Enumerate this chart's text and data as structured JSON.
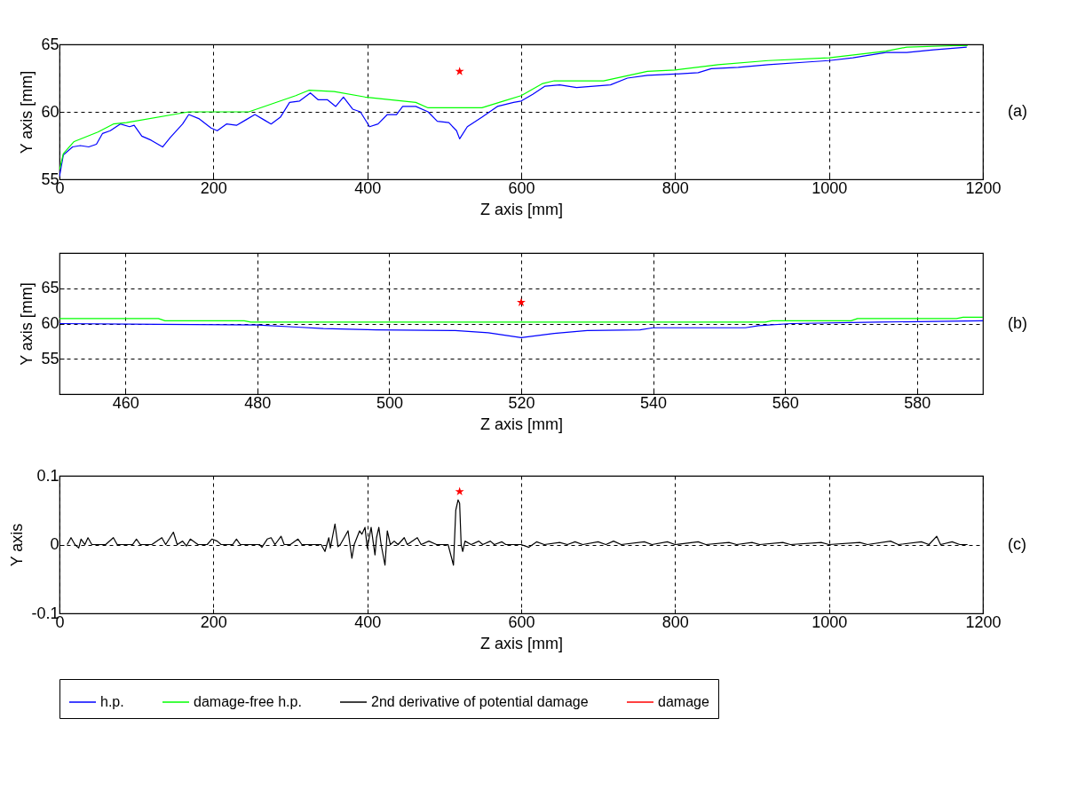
{
  "chart_data": [
    {
      "type": "line",
      "xlabel": "Z axis [mm]",
      "ylabel": "Y axis [mm]",
      "xlim": [
        0,
        1200
      ],
      "xticks": [
        0,
        200,
        400,
        600,
        800,
        1000,
        1200
      ],
      "ylim": [
        55,
        65
      ],
      "yticks": [
        55,
        60,
        65
      ],
      "grid": true,
      "legend": "bottom",
      "annotations": [
        "(a)"
      ],
      "series": [
        {
          "name": "h.p.",
          "color": "#0000ff",
          "x": [
            0,
            5,
            17,
            27,
            38,
            48,
            56,
            66,
            79,
            91,
            97,
            107,
            119,
            134,
            144,
            160,
            168,
            181,
            197,
            205,
            217,
            230,
            242,
            254,
            266,
            275,
            287,
            299,
            312,
            326,
            336,
            348,
            359,
            369,
            381,
            391,
            403,
            414,
            426,
            438,
            446,
            463,
            479,
            491,
            506,
            516,
            520,
            530,
            549,
            569,
            590,
            600,
            615,
            631,
            650,
            672,
            694,
            716,
            738,
            764,
            800,
            830,
            847,
            882,
            921,
            974,
            1000,
            1031,
            1074,
            1101,
            1136,
            1179
          ],
          "values": [
            55.2,
            56.8,
            57.4,
            57.5,
            57.4,
            57.6,
            58.4,
            58.6,
            59.1,
            58.9,
            59.0,
            58.2,
            57.9,
            57.4,
            58.1,
            59.1,
            59.8,
            59.5,
            58.8,
            58.6,
            59.1,
            59.0,
            59.4,
            59.8,
            59.4,
            59.1,
            59.6,
            60.7,
            60.8,
            61.4,
            60.9,
            60.9,
            60.4,
            61.1,
            60.2,
            60.0,
            58.9,
            59.1,
            59.8,
            59.8,
            60.4,
            60.4,
            60.0,
            59.3,
            59.2,
            58.6,
            58.0,
            58.9,
            59.6,
            60.4,
            60.7,
            60.8,
            61.3,
            61.9,
            62.0,
            61.8,
            61.9,
            62.0,
            62.5,
            62.7,
            62.8,
            62.9,
            63.2,
            63.3,
            63.5,
            63.7,
            63.8,
            64.0,
            64.4,
            64.4,
            64.6,
            64.8
          ]
        },
        {
          "name": "damage-free h.p.",
          "color": "#00ff00",
          "x": [
            0,
            5,
            19,
            50,
            70,
            87,
            168,
            246,
            307,
            324,
            357,
            397,
            463,
            479,
            549,
            577,
            600,
            628,
            643,
            707,
            764,
            800,
            856,
            921,
            1000,
            1074,
            1101,
            1162,
            1180
          ],
          "values": [
            55.7,
            56.9,
            57.8,
            58.5,
            59.1,
            59.2,
            60.0,
            60.0,
            61.2,
            61.6,
            61.5,
            61.1,
            60.7,
            60.3,
            60.3,
            60.8,
            61.2,
            62.1,
            62.3,
            62.3,
            63.0,
            63.1,
            63.5,
            63.8,
            64.0,
            64.5,
            64.8,
            64.9,
            64.9
          ]
        },
        {
          "name": "damage",
          "type": "scatter",
          "marker": "star",
          "color": "#ff0000",
          "x": [
            520
          ],
          "values": [
            63
          ]
        }
      ]
    },
    {
      "type": "line",
      "xlabel": "Z axis [mm]",
      "ylabel": "Y axis [mm]",
      "xlim": [
        450,
        590
      ],
      "xticks": [
        460,
        480,
        500,
        520,
        540,
        560,
        580
      ],
      "ylim": [
        50,
        70
      ],
      "yticks": [
        55,
        60,
        65
      ],
      "grid": true,
      "legend": "bottom",
      "annotations": [
        "(b)"
      ],
      "series": [
        {
          "name": "h.p.",
          "color": "#0000ff",
          "x": [
            450,
            465,
            480,
            486,
            490,
            498,
            510,
            515,
            520,
            525,
            530,
            538,
            540,
            554,
            556,
            561,
            574,
            590
          ],
          "values": [
            60.0,
            59.9,
            59.8,
            59.5,
            59.3,
            59.1,
            59.0,
            58.7,
            58.0,
            58.6,
            59.0,
            59.1,
            59.4,
            59.4,
            59.7,
            60.0,
            60.2,
            60.4
          ]
        },
        {
          "name": "damage-free h.p.",
          "color": "#00ff00",
          "x": [
            450,
            465,
            466,
            478,
            479,
            557,
            558,
            570,
            571,
            586,
            587,
            590
          ],
          "values": [
            60.7,
            60.7,
            60.4,
            60.4,
            60.2,
            60.2,
            60.4,
            60.4,
            60.7,
            60.7,
            60.9,
            60.9
          ]
        },
        {
          "name": "damage",
          "type": "scatter",
          "marker": "star",
          "color": "#ff0000",
          "x": [
            520
          ],
          "values": [
            63
          ]
        }
      ]
    },
    {
      "type": "line",
      "xlabel": "Z axis [mm]",
      "ylabel": "Y axis",
      "xlim": [
        0,
        1200
      ],
      "xticks": [
        0,
        200,
        400,
        600,
        800,
        1000,
        1200
      ],
      "ylim": [
        -0.1,
        0.1
      ],
      "yticks": [
        -0.1,
        0,
        0.1
      ],
      "grid": true,
      "legend": "bottom",
      "annotations": [
        "(c)"
      ],
      "series": [
        {
          "name": "2nd derivative of potential damage",
          "color": "#000000",
          "x": [
            10,
            15,
            20,
            25,
            28,
            33,
            37,
            42,
            60,
            70,
            75,
            95,
            100,
            105,
            120,
            133,
            138,
            148,
            153,
            160,
            165,
            170,
            180,
            192,
            198,
            205,
            210,
            225,
            230,
            235,
            250,
            260,
            263,
            270,
            275,
            280,
            288,
            292,
            300,
            310,
            315,
            340,
            345,
            350,
            352,
            358,
            362,
            365,
            375,
            380,
            383,
            390,
            393,
            397,
            400,
            405,
            410,
            412,
            415,
            418,
            423,
            426,
            430,
            435,
            440,
            448,
            452,
            465,
            470,
            480,
            490,
            505,
            512,
            515,
            518,
            520,
            522,
            524,
            527,
            535,
            545,
            550,
            560,
            565,
            575,
            580,
            600,
            610,
            620,
            630,
            650,
            660,
            670,
            680,
            700,
            710,
            720,
            730,
            760,
            770,
            790,
            800,
            830,
            840,
            870,
            880,
            900,
            910,
            940,
            950,
            990,
            1000,
            1040,
            1050,
            1080,
            1090,
            1120,
            1130,
            1140,
            1145,
            1160,
            1170,
            1180
          ],
          "values": [
            0,
            0.01,
            0,
            -0.005,
            0.008,
            0,
            0.01,
            0,
            0,
            0.01,
            0,
            0,
            0.008,
            0,
            0,
            0.01,
            0,
            0.018,
            0,
            0.005,
            -0.002,
            0.008,
            0,
            0,
            0.008,
            0.005,
            0,
            0,
            0.008,
            0,
            0,
            0,
            -0.004,
            0.008,
            0.01,
            0,
            0.012,
            0,
            0,
            0.008,
            0,
            0,
            -0.01,
            0.01,
            -0.005,
            0.03,
            -0.003,
            0,
            0.02,
            -0.02,
            0,
            0.02,
            0.015,
            0.025,
            -0.005,
            0.025,
            -0.015,
            0.01,
            0.025,
            0,
            -0.03,
            0.02,
            0,
            0.005,
            0,
            0.01,
            0,
            0.01,
            0,
            0.005,
            0,
            0,
            -0.03,
            0.05,
            0.065,
            0.06,
            0,
            -0.01,
            0.005,
            0,
            0.005,
            0,
            0.005,
            0,
            0.004,
            0,
            0,
            -0.004,
            0.004,
            0,
            0.003,
            0,
            0.004,
            0,
            0.004,
            0,
            0.005,
            0,
            0.004,
            0,
            0.004,
            0,
            0.004,
            0,
            0.003,
            0,
            0.003,
            0,
            0.003,
            0,
            0.003,
            0,
            0.003,
            0,
            0.005,
            0,
            0.004,
            0,
            0.012,
            0,
            0.004,
            0,
            0
          ]
        },
        {
          "name": "damage",
          "type": "scatter",
          "marker": "star",
          "color": "#ff0000",
          "x": [
            520
          ],
          "values": [
            0.077
          ]
        }
      ]
    }
  ]
}
